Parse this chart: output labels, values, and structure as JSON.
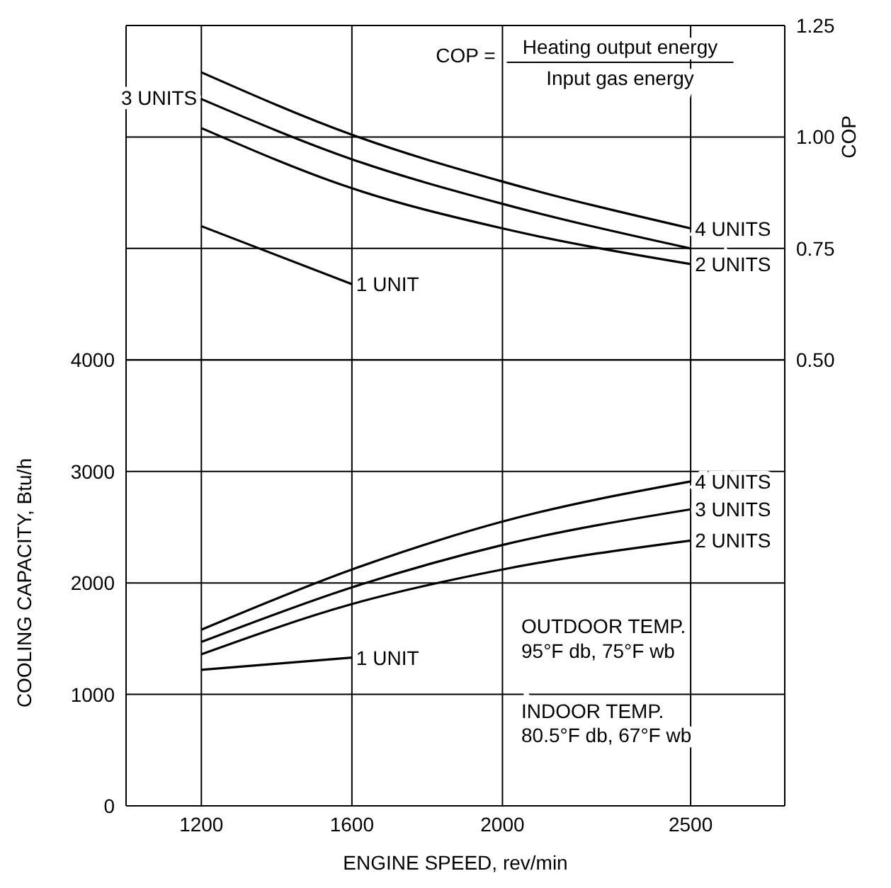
{
  "chart_data": {
    "type": "line",
    "xlabel": "ENGINE SPEED,  rev/min",
    "ylabel": "COOLING CAPACITY,  Btu/h",
    "y2label": "COP",
    "xlim": [
      1000,
      2750
    ],
    "xticks": [
      1200,
      1600,
      2000,
      2500
    ],
    "ylim": [
      0,
      7000
    ],
    "yticks": [
      0,
      1000,
      2000,
      3000,
      4000
    ],
    "y2lim": [
      -0.5,
      1.25
    ],
    "y2ticks": [
      {
        "value": 0.5,
        "label": "0.50"
      },
      {
        "value": 0.75,
        "label": "0.75"
      },
      {
        "value": 1,
        "label": "1.00"
      },
      {
        "value": 1.25,
        "label": "1.25"
      }
    ],
    "grid": true,
    "marker": "none",
    "line_style": "solid",
    "annotations": [
      "COP =",
      "Heating output energy",
      "Input gas energy",
      "OUTDOOR TEMP.",
      "95°F db, 75°F wb",
      "INDOOR TEMP.",
      "80.5°F db, 67°F wb"
    ],
    "series": [
      {
        "name": "1 UNIT",
        "color": "#000000",
        "x": [
          1200,
          1600
        ],
        "values": [
          1220,
          1330
        ]
      },
      {
        "name": "2 UNITS",
        "color": "#000000",
        "x": [
          1200,
          1600,
          2000,
          2500
        ],
        "values": [
          1360,
          1810,
          2120,
          2380
        ]
      },
      {
        "name": "3 UNITS",
        "color": "#000000",
        "x": [
          1200,
          1600,
          2000,
          2500
        ],
        "values": [
          1470,
          1960,
          2340,
          2660
        ]
      },
      {
        "name": "4 UNITS",
        "color": "#000000",
        "x": [
          1200,
          1600,
          2000,
          2500
        ],
        "values": [
          1580,
          2120,
          2550,
          2910
        ]
      },
      {
        "name": "1 UNIT",
        "color": "#000000",
        "axis": "y2",
        "x": [
          1200,
          1600
        ],
        "values": [
          0.8,
          0.67
        ]
      },
      {
        "name": "2 UNITS",
        "color": "#000000",
        "axis": "y2",
        "x": [
          1200,
          1600,
          2000,
          2500
        ],
        "values": [
          1.02,
          0.885,
          0.795,
          0.715
        ]
      },
      {
        "name": "3 UNITS",
        "color": "#000000",
        "axis": "y2",
        "x": [
          1200,
          1600,
          2000,
          2500
        ],
        "values": [
          1.085,
          0.95,
          0.85,
          0.75
        ]
      },
      {
        "name": "4 UNITS",
        "color": "#000000",
        "axis": "y2",
        "x": [
          1200,
          1600,
          2000,
          2500
        ],
        "values": [
          1.145,
          1.005,
          0.9,
          0.795
        ]
      }
    ]
  }
}
